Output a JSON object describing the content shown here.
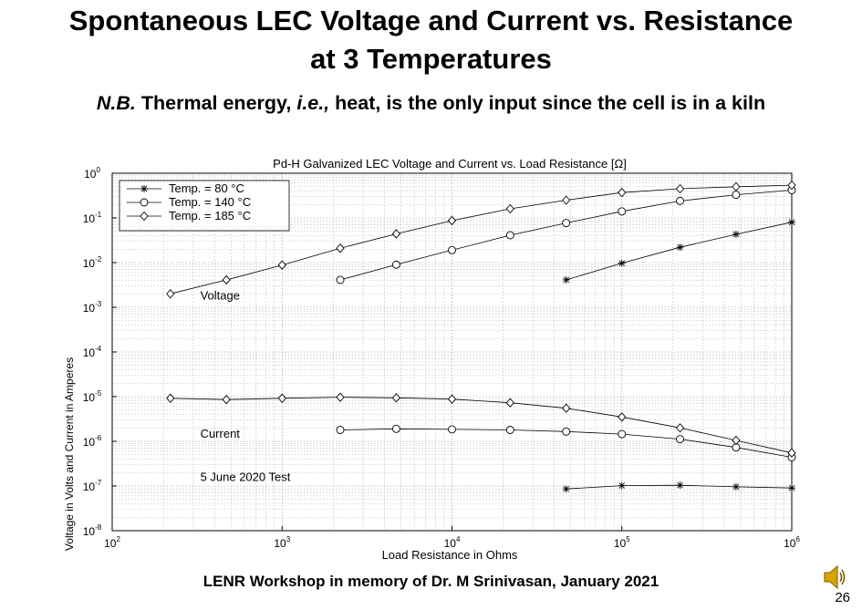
{
  "slide": {
    "title_line1": "Spontaneous LEC Voltage and Current vs. Resistance",
    "title_line2": "at 3 Temperatures",
    "subtitle_nb": "N.B.",
    "subtitle_text1": " Thermal energy, ",
    "subtitle_ie": "i.e.,",
    "subtitle_text2": " heat, is the only input since the cell is in a kiln",
    "footer": "LENR Workshop in memory of Dr. M Srinivasan, January 2021",
    "page_number": "26",
    "speaker_icon": "speaker-icon"
  },
  "chart_data": {
    "type": "line",
    "title": "Pd-H Galvanized LEC Voltage and Current  vs. Load Resistance [Ω]",
    "xlabel": "Load Resistance in Ohms",
    "ylabel": "Voltage in Volts and Current in Amperes",
    "x_scale": "log",
    "y_scale": "log",
    "xlim": [
      100,
      1000000
    ],
    "ylim": [
      1e-08,
      1
    ],
    "grid": true,
    "legend_position": "top-left",
    "x_ticks": [
      {
        "value": 100,
        "base": "10",
        "exp": "2"
      },
      {
        "value": 1000,
        "base": "10",
        "exp": "3"
      },
      {
        "value": 10000,
        "base": "10",
        "exp": "4"
      },
      {
        "value": 100000,
        "base": "10",
        "exp": "5"
      },
      {
        "value": 1000000,
        "base": "10",
        "exp": "6"
      }
    ],
    "y_ticks": [
      {
        "value": 1,
        "base": "10",
        "exp": "0"
      },
      {
        "value": 0.1,
        "base": "10",
        "exp": "-1"
      },
      {
        "value": 0.01,
        "base": "10",
        "exp": "-2"
      },
      {
        "value": 0.001,
        "base": "10",
        "exp": "-3"
      },
      {
        "value": 0.0001,
        "base": "10",
        "exp": "-4"
      },
      {
        "value": 1e-05,
        "base": "10",
        "exp": "-5"
      },
      {
        "value": 1e-06,
        "base": "10",
        "exp": "-6"
      },
      {
        "value": 1e-07,
        "base": "10",
        "exp": "-7"
      },
      {
        "value": 1e-08,
        "base": "10",
        "exp": "-8"
      }
    ],
    "annotations": [
      {
        "text": "Voltage",
        "x": 330,
        "y": 0.0015
      },
      {
        "text": "Current",
        "x": 330,
        "y": 1.2e-06
      },
      {
        "text": "5 June 2020 Test",
        "x": 330,
        "y": 1.3e-07
      }
    ],
    "series": [
      {
        "name": "Temp. = 80 °C",
        "marker": "star",
        "color": "#000000",
        "voltage": {
          "x": [
            47000,
            100000,
            220000,
            470000,
            1000000
          ],
          "y": [
            0.0041,
            0.0097,
            0.022,
            0.043,
            0.08
          ]
        },
        "current": {
          "x": [
            47000,
            100000,
            220000,
            470000,
            1000000
          ],
          "y": [
            8.6e-08,
            1.02e-07,
            1.04e-07,
            9.6e-08,
            9e-08
          ]
        }
      },
      {
        "name": "Temp. = 140 °C",
        "marker": "circle",
        "color": "#000000",
        "voltage": {
          "x": [
            2200,
            4700,
            10000,
            22000,
            47000,
            100000,
            220000,
            470000,
            1000000
          ],
          "y": [
            0.0041,
            0.009,
            0.019,
            0.041,
            0.077,
            0.14,
            0.24,
            0.33,
            0.42
          ]
        },
        "current": {
          "x": [
            2200,
            4700,
            10000,
            22000,
            47000,
            100000,
            220000,
            470000,
            1000000
          ],
          "y": [
            1.8e-06,
            1.9e-06,
            1.85e-06,
            1.8e-06,
            1.65e-06,
            1.45e-06,
            1.12e-06,
            7.3e-07,
            4.4e-07
          ]
        }
      },
      {
        "name": "Temp. = 185 °C",
        "marker": "diamond",
        "color": "#000000",
        "voltage": {
          "x": [
            220,
            470,
            1000,
            2200,
            4700,
            10000,
            22000,
            47000,
            100000,
            220000,
            470000,
            1000000
          ],
          "y": [
            0.002,
            0.0041,
            0.0088,
            0.021,
            0.044,
            0.087,
            0.16,
            0.25,
            0.37,
            0.45,
            0.5,
            0.54
          ]
        },
        "current": {
          "x": [
            220,
            470,
            1000,
            2200,
            4700,
            10000,
            22000,
            47000,
            100000,
            220000,
            470000,
            1000000
          ],
          "y": [
            9.2e-06,
            8.6e-06,
            9.2e-06,
            9.7e-06,
            9.4e-06,
            8.8e-06,
            7.3e-06,
            5.5e-06,
            3.5e-06,
            2e-06,
            1.05e-06,
            5.5e-07
          ]
        }
      }
    ]
  }
}
